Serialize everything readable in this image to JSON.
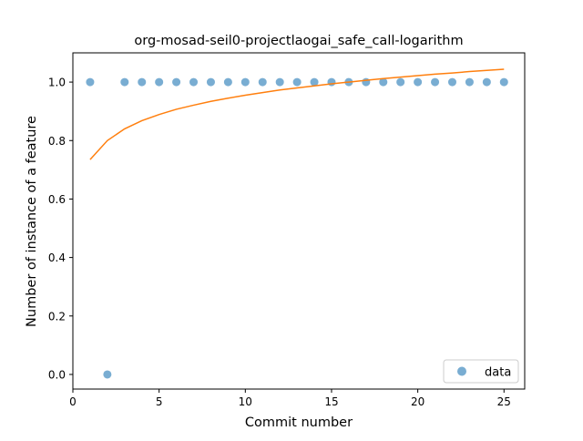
{
  "chart_data": {
    "type": "scatter",
    "title": "org-mosad-seil0-projectlaogai_safe_call-logarithm",
    "xlabel": "Commit number",
    "ylabel": "Number of instance of a feature",
    "xlim": [
      0,
      26.2
    ],
    "ylim": [
      -0.05,
      1.1
    ],
    "xticks": [
      0,
      5,
      10,
      15,
      20,
      25
    ],
    "yticks": [
      0.0,
      0.2,
      0.4,
      0.6,
      0.8,
      1.0
    ],
    "xtick_labels": [
      "0",
      "5",
      "10",
      "15",
      "20",
      "25"
    ],
    "ytick_labels": [
      "0.0",
      "0.2",
      "0.4",
      "0.6",
      "0.8",
      "1.0"
    ],
    "grid": false,
    "legend_position": "lower right",
    "series": [
      {
        "name": "data",
        "kind": "scatter",
        "color": "#1f77b4",
        "x": [
          1,
          2,
          3,
          4,
          5,
          6,
          7,
          8,
          9,
          10,
          11,
          12,
          13,
          14,
          15,
          16,
          17,
          18,
          19,
          20,
          21,
          22,
          23,
          24,
          25
        ],
        "y": [
          1,
          0,
          1,
          1,
          1,
          1,
          1,
          1,
          1,
          1,
          1,
          1,
          1,
          1,
          1,
          1,
          1,
          1,
          1,
          1,
          1,
          1,
          1,
          1,
          1
        ]
      },
      {
        "kind": "line",
        "color": "#ff7f0e",
        "x": [
          1,
          2,
          3,
          4,
          5,
          6,
          7,
          8,
          9,
          10,
          11,
          12,
          13,
          14,
          15,
          16,
          17,
          18,
          19,
          20,
          21,
          22,
          23,
          24,
          25
        ],
        "y": [
          0.735,
          0.8,
          0.84,
          0.868,
          0.889,
          0.907,
          0.921,
          0.934,
          0.945,
          0.955,
          0.964,
          0.973,
          0.98,
          0.987,
          0.994,
          1.0,
          1.006,
          1.012,
          1.017,
          1.022,
          1.027,
          1.031,
          1.036,
          1.04,
          1.044
        ]
      }
    ]
  }
}
